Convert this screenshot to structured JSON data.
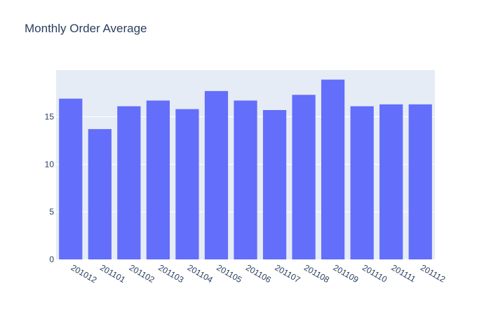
{
  "chart_data": {
    "type": "bar",
    "title": "Monthly Order Average",
    "categories": [
      "201012",
      "201101",
      "201102",
      "201103",
      "201104",
      "201105",
      "201106",
      "201107",
      "201108",
      "201109",
      "201110",
      "201111",
      "201112"
    ],
    "values": [
      16.9,
      13.7,
      16.1,
      16.7,
      15.8,
      17.7,
      16.7,
      15.7,
      17.3,
      18.9,
      16.1,
      16.3,
      16.3
    ],
    "xlabel": "",
    "ylabel": "",
    "ylim": [
      0,
      19.9
    ],
    "yticks": [
      0,
      5,
      10,
      15
    ],
    "grid": true,
    "colors": {
      "bar": "#636efa",
      "plot_background": "#e5ecf6",
      "grid": "#ffffff",
      "text": "#2a3f5f"
    }
  }
}
